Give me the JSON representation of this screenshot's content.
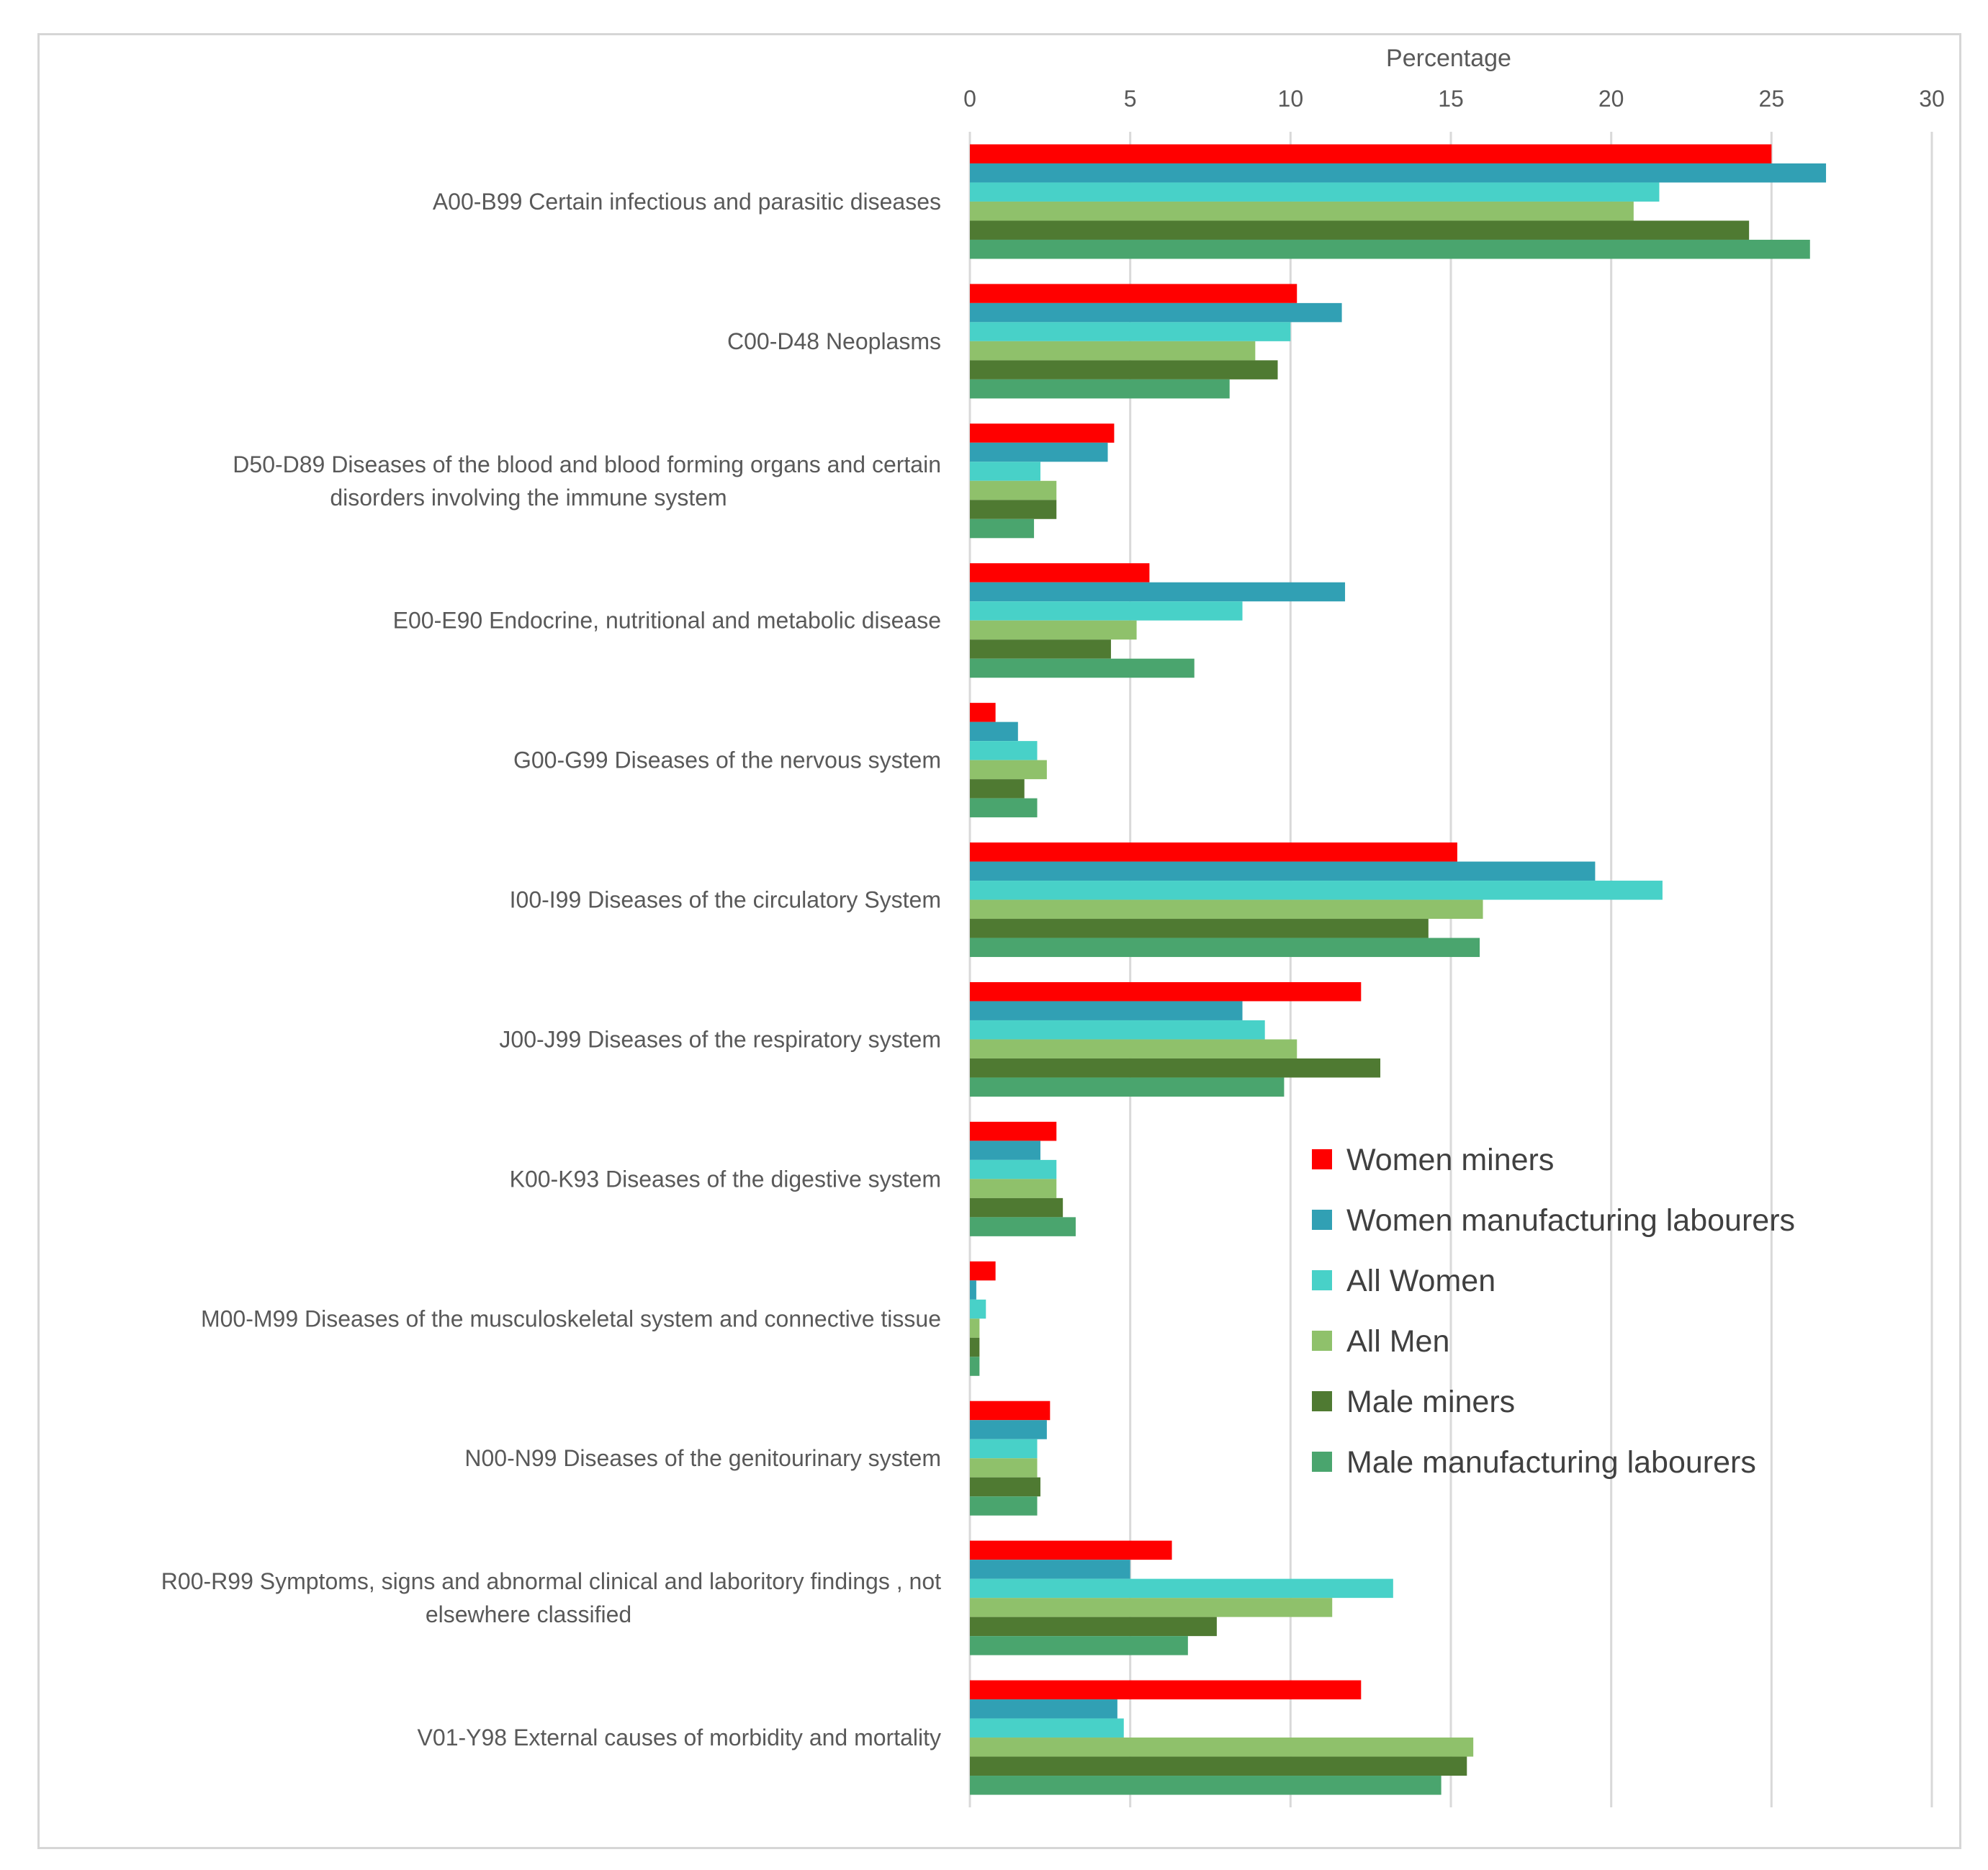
{
  "chart_data": {
    "type": "bar",
    "orientation": "horizontal",
    "title": "",
    "xlabel": "Percentage",
    "ylabel": "",
    "xlim": [
      0,
      30
    ],
    "x_ticks": [
      "0",
      "5",
      "10",
      "15",
      "20",
      "25",
      "30"
    ],
    "grid": true,
    "legend_position": "right",
    "categories": [
      [
        "A00-B99 Certain infectious and parasitic diseases"
      ],
      [
        "C00-D48  Neoplasms"
      ],
      [
        "D50-D89   Diseases of the blood and blood forming organs and certain",
        "disorders involving the immune system"
      ],
      [
        "E00-E90   Endocrine, nutritional and metabolic disease"
      ],
      [
        "G00-G99  Diseases of the nervous system"
      ],
      [
        "I00-I99  Diseases of the circulatory System"
      ],
      [
        "J00-J99  Diseases of the respiratory system"
      ],
      [
        "K00-K93  Diseases of the digestive system"
      ],
      [
        "M00-M99  Diseases of the musculoskeletal system and connective tissue"
      ],
      [
        "N00-N99  Diseases of the genitourinary system"
      ],
      [
        "R00-R99  Symptoms, signs and abnormal clinical and laboritory findings , not",
        "elsewhere classified"
      ],
      [
        "V01-Y98   External causes of morbidity and mortality"
      ]
    ],
    "series": [
      {
        "name": "Women miners",
        "color": "#ff0000",
        "values": [
          25.0,
          10.2,
          4.5,
          5.6,
          0.8,
          15.2,
          12.2,
          2.7,
          0.8,
          2.5,
          6.3,
          12.2
        ]
      },
      {
        "name": "Women manufacturing labourers",
        "color": "#31a0b4",
        "values": [
          26.7,
          11.6,
          4.3,
          11.7,
          1.5,
          19.5,
          8.5,
          2.2,
          0.2,
          2.4,
          5.0,
          4.6
        ]
      },
      {
        "name": "All Women",
        "color": "#48d1c8",
        "values": [
          21.5,
          10.0,
          2.2,
          8.5,
          2.1,
          21.6,
          9.2,
          2.7,
          0.5,
          2.1,
          13.2,
          4.8
        ]
      },
      {
        "name": "All Men",
        "color": "#8fc16b",
        "values": [
          20.7,
          8.9,
          2.7,
          5.2,
          2.4,
          16.0,
          10.2,
          2.7,
          0.3,
          2.1,
          11.3,
          15.7
        ]
      },
      {
        "name": "Male miners",
        "color": "#4f7a32",
        "values": [
          24.3,
          9.6,
          2.7,
          4.4,
          1.7,
          14.3,
          12.8,
          2.9,
          0.3,
          2.2,
          7.7,
          15.5
        ]
      },
      {
        "name": "Male manufacturing labourers",
        "color": "#4aa56e",
        "values": [
          26.2,
          8.1,
          2.0,
          7.0,
          2.1,
          15.9,
          9.8,
          3.3,
          0.3,
          2.1,
          6.8,
          14.7
        ]
      }
    ]
  }
}
